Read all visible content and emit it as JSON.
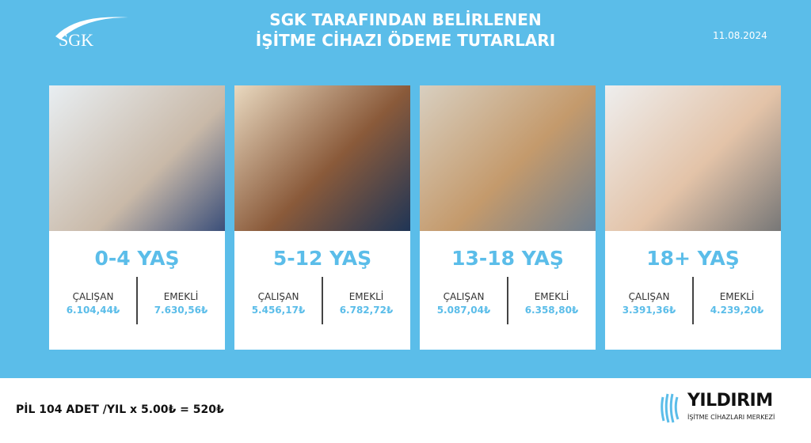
{
  "header": {
    "logo_text": "SGK",
    "title_line1": "SGK TARAFINDAN BELİRLENEN",
    "title_line2": "İŞİTME CİHAZI ÖDEME TUTARLARI",
    "date": "11.08.2024"
  },
  "labels": {
    "employee": "ÇALIŞAN",
    "retired": "EMEKLİ"
  },
  "cards": [
    {
      "age": "0-4 YAŞ",
      "employee": "6.104,44₺",
      "retired": "7.630,56₺",
      "photo": "baby-at-window"
    },
    {
      "age": "5-12 YAŞ",
      "employee": "5.456,17₺",
      "retired": "6.782,72₺",
      "photo": "child-with-hearing-aid"
    },
    {
      "age": "13-18 YAŞ",
      "employee": "5.087,04₺",
      "retired": "6.358,80₺",
      "photo": "teen-fitted-hearing-aid"
    },
    {
      "age": "18+ YAŞ",
      "employee": "3.391,36₺",
      "retired": "4.239,20₺",
      "photo": "elderly-man-hearing-aid"
    }
  ],
  "footer": {
    "battery_note": "PİL 104 ADET /YIL x 5.00₺ = 520₺",
    "brand_name": "YILDIRIM",
    "brand_sub": "İŞİTME CİHAZLARI MERKEZİ"
  },
  "colors": {
    "accent": "#5bbde9"
  }
}
